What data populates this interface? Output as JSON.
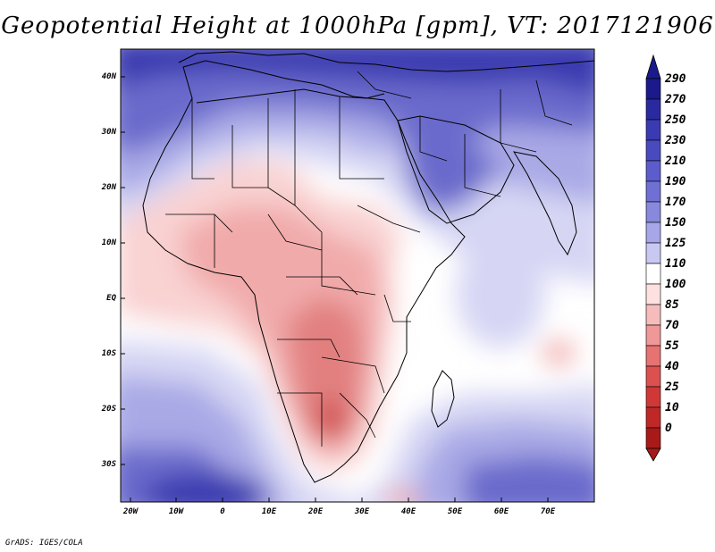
{
  "title": "Geopotential Height at 1000hPa [gpm], VT: 2017121906",
  "footer": "GrADS: IGES/COLA",
  "map": {
    "lat_labels": [
      "40N",
      "30N",
      "20N",
      "10N",
      "EQ",
      "10S",
      "20S",
      "30S"
    ],
    "lon_labels": [
      "20W",
      "10W",
      "0",
      "10E",
      "20E",
      "30E",
      "40E",
      "50E",
      "60E",
      "70E"
    ]
  },
  "colorbar": {
    "labels": [
      "290",
      "270",
      "250",
      "230",
      "210",
      "190",
      "170",
      "150",
      "125",
      "110",
      "100",
      "85",
      "70",
      "55",
      "40",
      "25",
      "10",
      "0"
    ],
    "colors": [
      "#1a1a8c",
      "#2a2aa0",
      "#3a3ab2",
      "#4a4ac0",
      "#5c5ccc",
      "#7070d4",
      "#8888dc",
      "#a6a6e8",
      "#c8c8f2",
      "#ffffff",
      "#fde0e0",
      "#f6bcbc",
      "#ef9898",
      "#e67272",
      "#dc5050",
      "#d03838",
      "#c02828",
      "#a81a1a"
    ],
    "top_arrow_color": "#1a1a8c",
    "bottom_arrow_color": "#a81a1a"
  },
  "field_colors": {
    "deep_blue": "#3b3bb0",
    "mid_blue": "#6a6acc",
    "light_blue": "#a9a9e6",
    "pale_blue": "#d6d6f4",
    "white": "#ffffff",
    "pale_red": "#f9d2d2",
    "light_red": "#f1aaaa",
    "mid_red": "#e28080",
    "deep_red": "#d35a5a"
  }
}
